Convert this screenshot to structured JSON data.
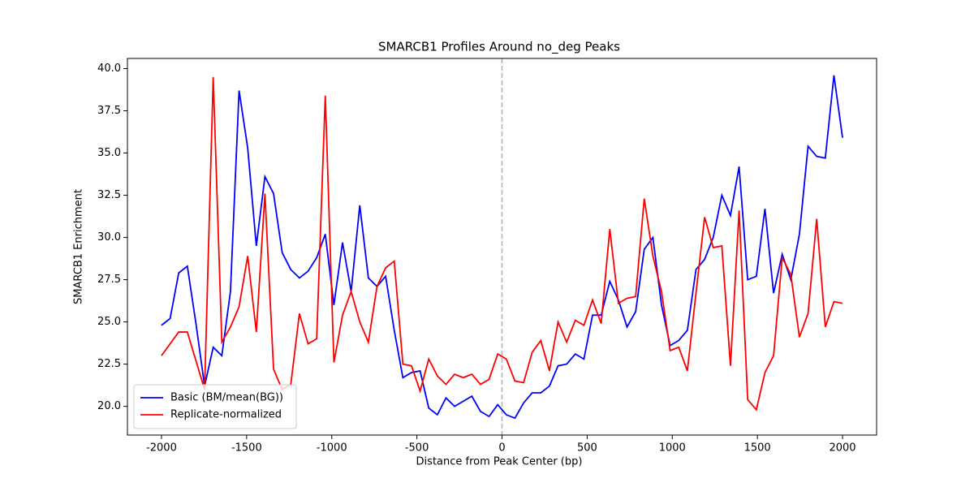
{
  "chart_data": {
    "type": "line",
    "title": "SMARCB1 Profiles Around no_deg Peaks",
    "xlabel": "Distance from Peak Center (bp)",
    "ylabel": "SMARCB1 Enrichment",
    "x": [
      -2000,
      -1949.4,
      -1898.7,
      -1848.1,
      -1797.5,
      -1746.8,
      -1696.2,
      -1645.6,
      -1594.9,
      -1544.3,
      -1493.7,
      -1443.0,
      -1392.4,
      -1341.8,
      -1291.1,
      -1240.5,
      -1189.9,
      -1139.2,
      -1088.6,
      -1038.0,
      -987.3,
      -936.7,
      -886.1,
      -835.4,
      -784.8,
      -734.2,
      -683.5,
      -632.9,
      -582.3,
      -531.6,
      -481.0,
      -430.4,
      -379.7,
      -329.1,
      -278.5,
      -227.8,
      -177.2,
      -126.6,
      -75.9,
      -25.3,
      25.3,
      75.9,
      126.6,
      177.2,
      227.8,
      278.5,
      329.1,
      379.7,
      430.4,
      481.0,
      531.6,
      582.3,
      632.9,
      683.5,
      734.2,
      784.8,
      835.4,
      886.1,
      936.7,
      987.3,
      1038.0,
      1088.6,
      1139.2,
      1189.9,
      1240.5,
      1291.1,
      1341.8,
      1392.4,
      1443.0,
      1493.7,
      1544.3,
      1594.9,
      1645.6,
      1696.2,
      1746.8,
      1797.5,
      1848.1,
      1898.7,
      1949.4,
      2000
    ],
    "series": [
      {
        "name": "Basic (BM/mean(BG))",
        "color": "#0000ff",
        "values": [
          24.8,
          25.2,
          27.9,
          28.3,
          24.9,
          21.2,
          23.5,
          23.0,
          26.8,
          38.7,
          35.3,
          29.5,
          33.6,
          32.6,
          29.1,
          28.1,
          27.6,
          28.0,
          28.8,
          30.2,
          26.0,
          29.7,
          26.8,
          31.9,
          27.6,
          27.1,
          27.7,
          24.5,
          21.7,
          22.0,
          22.1,
          19.9,
          19.5,
          20.5,
          20.0,
          20.3,
          20.6,
          19.7,
          19.4,
          20.1,
          19.5,
          19.3,
          20.2,
          20.8,
          20.8,
          21.2,
          22.4,
          22.5,
          23.1,
          22.8,
          25.4,
          25.4,
          27.4,
          26.3,
          24.7,
          25.6,
          29.3,
          30.0,
          26.0,
          23.6,
          23.9,
          24.5,
          28.1,
          28.7,
          30.0,
          32.5,
          31.3,
          34.2,
          27.5,
          27.7,
          31.7,
          26.7,
          29.0,
          27.5,
          30.2,
          35.4,
          34.8,
          34.7,
          39.6,
          35.9
        ]
      },
      {
        "name": "Replicate-normalized",
        "color": "#ff0000",
        "values": [
          23.0,
          23.7,
          24.4,
          24.4,
          22.7,
          21.0,
          39.5,
          23.8,
          24.7,
          25.9,
          28.9,
          24.4,
          32.6,
          22.2,
          21.0,
          21.3,
          25.5,
          23.7,
          24.0,
          38.4,
          22.6,
          25.4,
          26.8,
          25.0,
          23.8,
          27.1,
          28.2,
          28.6,
          22.5,
          22.4,
          20.9,
          22.8,
          21.8,
          21.3,
          21.9,
          21.7,
          21.9,
          21.3,
          21.6,
          23.1,
          22.8,
          21.5,
          21.4,
          23.2,
          23.9,
          22.1,
          25.0,
          23.8,
          25.1,
          24.8,
          26.3,
          24.9,
          30.5,
          26.1,
          26.4,
          26.5,
          32.3,
          28.9,
          26.8,
          23.3,
          23.5,
          22.1,
          26.7,
          31.2,
          29.4,
          29.5,
          22.4,
          31.6,
          20.4,
          19.8,
          22.0,
          23.0,
          28.8,
          27.8,
          24.1,
          25.5,
          31.1,
          24.7,
          26.2,
          26.1
        ]
      }
    ],
    "xlim": [
      -2200,
      2200
    ],
    "ylim": [
      18.3,
      40.6
    ],
    "xticks": [
      -2000,
      -1500,
      -1000,
      -500,
      0,
      500,
      1000,
      1500,
      2000
    ],
    "yticks": [
      {
        "value": 20,
        "label": "20.0"
      },
      {
        "value": 22.5,
        "label": "22.5"
      },
      {
        "value": 25,
        "label": "25.0"
      },
      {
        "value": 27.5,
        "label": "27.5"
      },
      {
        "value": 30,
        "label": "30.0"
      },
      {
        "value": 32.5,
        "label": "32.5"
      },
      {
        "value": 35,
        "label": "35.0"
      },
      {
        "value": 37.5,
        "label": "37.5"
      },
      {
        "value": 40,
        "label": "40.0"
      }
    ],
    "vline": 0,
    "vline_color": "#b0b0b0",
    "legend": "lower left",
    "grid": false
  }
}
